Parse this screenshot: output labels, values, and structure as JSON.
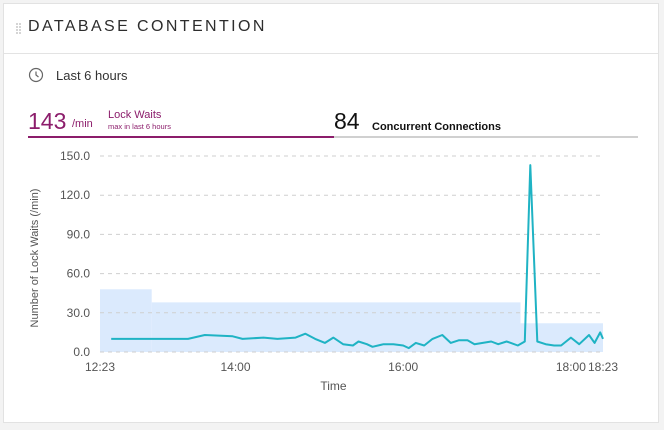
{
  "panel": {
    "title": "DATABASE CONTENTION"
  },
  "time_range": {
    "icon": "clock-icon",
    "label": "Last 6 hours"
  },
  "tabs": {
    "lock_waits": {
      "value": "143",
      "unit": "/min",
      "label": "Lock Waits",
      "sublabel": "max in last 6 hours",
      "color": "#8c1d6b"
    },
    "connections": {
      "value": "84",
      "label": "Concurrent Connections",
      "color": "#111111"
    }
  },
  "colors": {
    "line": "#1fb3c4",
    "band": "#dbeafd",
    "grid": "#cfcfcf",
    "axis_text": "#555555"
  },
  "chart_data": {
    "type": "line",
    "xlabel": "Time",
    "ylabel": "Number of Lock Waits (/min)",
    "ylim": [
      0,
      150
    ],
    "y_ticks": [
      "0.0",
      "30.0",
      "60.0",
      "90.0",
      "120.0",
      "150.0"
    ],
    "x_ticks": [
      {
        "t": "12:23",
        "label": "12:23"
      },
      {
        "t": "14:00",
        "label": "14:00"
      },
      {
        "t": "16:00",
        "label": "16:00"
      },
      {
        "t": "18:00",
        "label": "18:00"
      },
      {
        "t": "18:23",
        "label": "18:23"
      }
    ],
    "xlim": [
      "12:23",
      "18:23"
    ],
    "grid": "horizontal-dashed",
    "series": [
      {
        "points": [
          [
            "12:31",
            10
          ],
          [
            "13:00",
            10
          ],
          [
            "13:13",
            10
          ],
          [
            "13:26",
            10
          ],
          [
            "13:38",
            13
          ],
          [
            "13:58",
            12
          ],
          [
            "14:05",
            10
          ],
          [
            "14:20",
            11
          ],
          [
            "14:30",
            10
          ],
          [
            "14:43",
            11
          ],
          [
            "14:50",
            14
          ],
          [
            "14:57",
            10
          ],
          [
            "15:04",
            7
          ],
          [
            "15:10",
            11
          ],
          [
            "15:17",
            6
          ],
          [
            "15:24",
            5
          ],
          [
            "15:28",
            8
          ],
          [
            "15:34",
            6
          ],
          [
            "15:38",
            4
          ],
          [
            "15:46",
            6
          ],
          [
            "15:53",
            6
          ],
          [
            "16:00",
            5
          ],
          [
            "16:04",
            3
          ],
          [
            "16:09",
            7
          ],
          [
            "16:15",
            5
          ],
          [
            "16:21",
            10
          ],
          [
            "16:28",
            13
          ],
          [
            "16:34",
            7
          ],
          [
            "16:40",
            9
          ],
          [
            "16:46",
            9
          ],
          [
            "16:51",
            6
          ],
          [
            "16:57",
            7
          ],
          [
            "17:03",
            8
          ],
          [
            "17:08",
            6
          ],
          [
            "17:14",
            8
          ],
          [
            "17:17",
            7
          ],
          [
            "17:22",
            5
          ],
          [
            "17:27",
            8
          ],
          [
            "17:31",
            143
          ],
          [
            "17:36",
            8
          ],
          [
            "17:42",
            6
          ],
          [
            "17:48",
            5
          ],
          [
            "17:53",
            5
          ],
          [
            "18:00",
            11
          ],
          [
            "18:06",
            6
          ],
          [
            "18:13",
            13
          ],
          [
            "18:17",
            7
          ],
          [
            "18:21",
            15
          ],
          [
            "18:23",
            10
          ]
        ]
      }
    ],
    "bands": [
      {
        "start": "12:23",
        "end": "13:00",
        "value": 48
      },
      {
        "start": "13:00",
        "end": "17:24",
        "value": 38
      },
      {
        "start": "17:24",
        "end": "18:23",
        "value": 22
      }
    ]
  }
}
